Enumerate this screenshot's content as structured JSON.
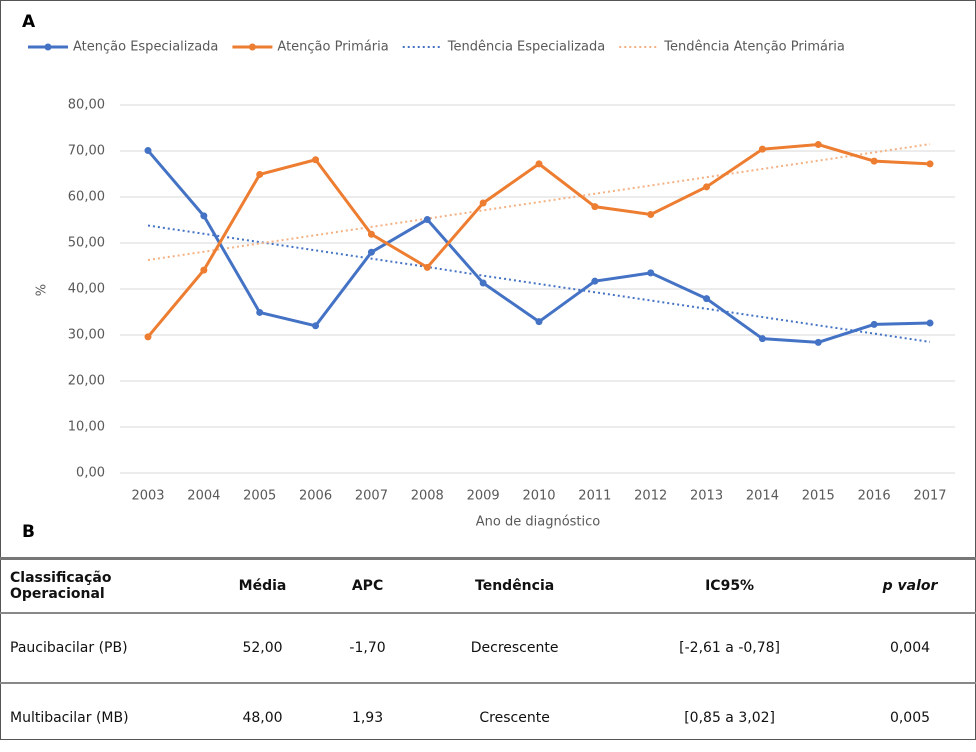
{
  "panel_labels": [
    "A",
    "B"
  ],
  "chart_data": {
    "type": "line",
    "x_label": "Ano de diagnóstico",
    "y_label": "%",
    "x": [
      2003,
      2004,
      2005,
      2006,
      2007,
      2008,
      2009,
      2010,
      2011,
      2012,
      2013,
      2014,
      2015,
      2016,
      2017
    ],
    "xlim": [
      2003,
      2017
    ],
    "ylim": [
      0,
      80
    ],
    "yticks": [
      {
        "value": 0,
        "label": "0,00"
      },
      {
        "value": 10,
        "label": "10,00"
      },
      {
        "value": 20,
        "label": "20,00"
      },
      {
        "value": 30,
        "label": "30,00"
      },
      {
        "value": 40,
        "label": "40,00"
      },
      {
        "value": 50,
        "label": "50,00"
      },
      {
        "value": 60,
        "label": "60,00"
      },
      {
        "value": 70,
        "label": "70,00"
      },
      {
        "value": 80,
        "label": "80,00"
      }
    ],
    "grid": true,
    "legend": "top",
    "series": [
      {
        "name": "Atenção Especializada",
        "color": "#4472c4",
        "style": "solid",
        "markers": true,
        "values": [
          70.1,
          55.9,
          34.9,
          32.0,
          48.0,
          55.1,
          41.3,
          32.9,
          41.7,
          43.5,
          37.9,
          29.2,
          28.4,
          32.3,
          32.6
        ]
      },
      {
        "name": "Atenção Primária",
        "color": "#ed7d31",
        "style": "solid",
        "markers": true,
        "values": [
          29.6,
          44.1,
          64.9,
          68.1,
          51.9,
          44.7,
          58.7,
          67.2,
          57.9,
          56.2,
          62.2,
          70.4,
          71.4,
          67.8,
          67.2
        ]
      },
      {
        "name": "Tendência Especializada",
        "color": "#4472c4",
        "style": "dotted",
        "markers": false,
        "values": [
          53.8,
          52.0,
          50.2,
          48.4,
          46.6,
          44.8,
          42.9,
          41.1,
          39.3,
          37.5,
          35.7,
          33.9,
          32.1,
          30.3,
          28.5
        ]
      },
      {
        "name": "Tendência Atenção Primária",
        "color": "#f4b183",
        "style": "dotted",
        "markers": false,
        "values": [
          46.3,
          48.1,
          49.9,
          51.7,
          53.5,
          55.3,
          57.1,
          58.9,
          60.7,
          62.5,
          64.3,
          66.1,
          67.9,
          69.7,
          71.5
        ]
      }
    ]
  },
  "table": {
    "header": [
      "Classificação Operacional",
      "Média",
      "APC",
      "Tendência",
      "IC95%",
      "p valor"
    ],
    "rows": [
      [
        "Paucibacilar (PB)",
        "52,00",
        "-1,70",
        "Decrescente",
        "[-2,61 a -0,78]",
        "0,004"
      ],
      [
        "Multibacilar (MB)",
        "48,00",
        "1,93",
        "Crescente",
        "[0,85 a 3,02]",
        "0,005"
      ]
    ]
  }
}
